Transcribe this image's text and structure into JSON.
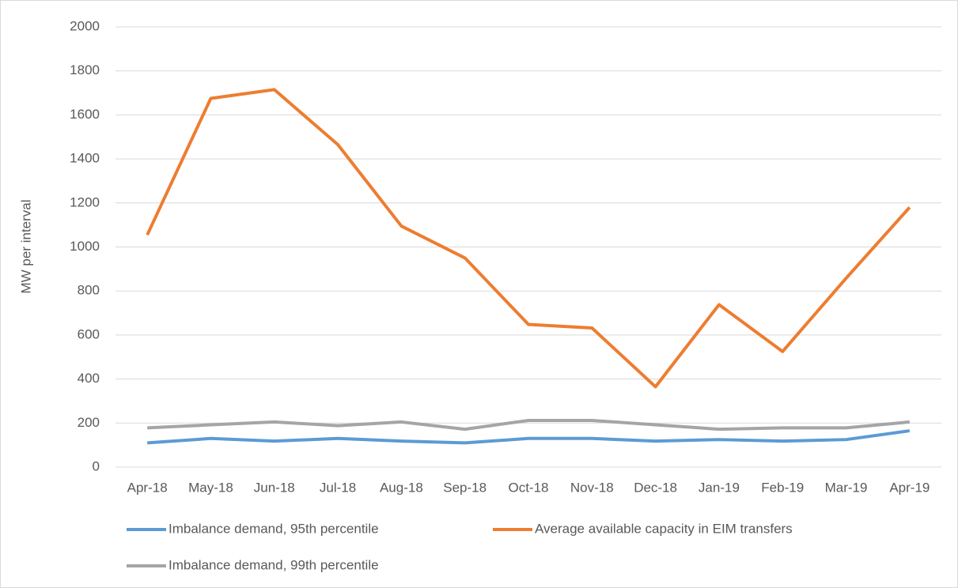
{
  "chart_data": {
    "type": "line",
    "y_label": "MW per interval",
    "categories": [
      "Apr-18",
      "May-18",
      "Jun-18",
      "Jul-18",
      "Aug-18",
      "Sep-18",
      "Oct-18",
      "Nov-18",
      "Dec-18",
      "Jan-19",
      "Feb-19",
      "Mar-19",
      "Apr-19"
    ],
    "series": [
      {
        "name": "Imbalance demand, 95th percentile",
        "color": "#5b9bd5",
        "values": [
          110,
          130,
          118,
          130,
          118,
          110,
          130,
          130,
          118,
          125,
          118,
          125,
          165
        ]
      },
      {
        "name": "Average available capacity in EIM transfers",
        "color": "#ed7d31",
        "values": [
          1055,
          1675,
          1715,
          1465,
          1095,
          950,
          648,
          632,
          365,
          738,
          525,
          858,
          1180
        ]
      },
      {
        "name": "Imbalance demand, 99th percentile",
        "color": "#a5a5a5",
        "values": [
          178,
          192,
          205,
          188,
          205,
          172,
          212,
          212,
          192,
          172,
          178,
          178,
          205
        ]
      }
    ],
    "ylim": [
      0,
      2000
    ],
    "yticks": [
      0,
      200,
      400,
      600,
      800,
      1000,
      1200,
      1400,
      1600,
      1800,
      2000
    ],
    "grid": true,
    "legend": "bottom"
  }
}
